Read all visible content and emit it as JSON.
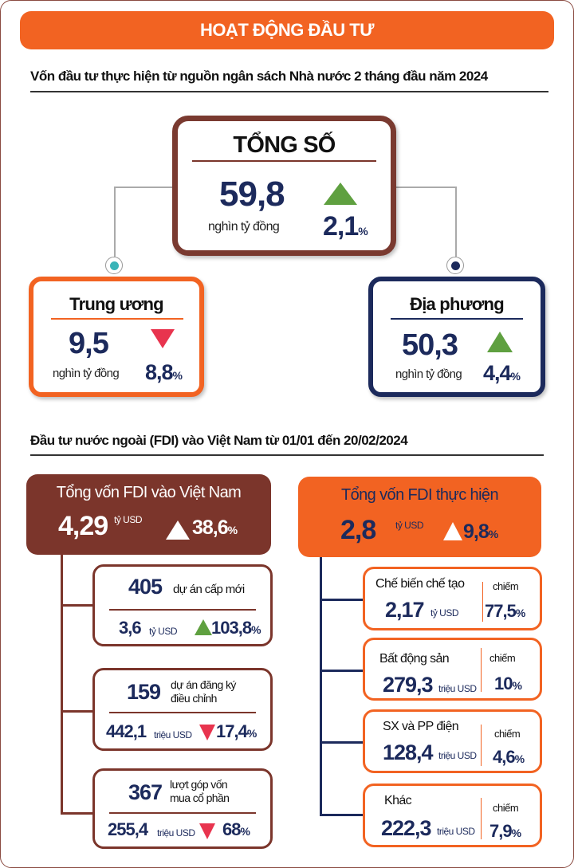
{
  "header": {
    "title": "HOẠT ĐỘNG ĐẦU TƯ"
  },
  "colors": {
    "orange": "#f26322",
    "brown": "#7b352b",
    "navy": "#1c2a5c",
    "up": "#5fa040",
    "down": "#e8344e",
    "teal": "#3ab4b8"
  },
  "budget": {
    "heading": "Vốn đầu tư thực hiện từ nguồn ngân sách Nhà nước 2 tháng đầu năm 2024",
    "total": {
      "title": "TỔNG SỐ",
      "value": "59,8",
      "unit": "nghìn tỷ đồng",
      "change": "2,1",
      "pct": "%",
      "direction": "up"
    },
    "central": {
      "title": "Trung ương",
      "value": "9,5",
      "unit": "nghìn tỷ đồng",
      "change": "8,8",
      "pct": "%",
      "direction": "down"
    },
    "local": {
      "title": "Địa phương",
      "value": "50,3",
      "unit": "nghìn tỷ đồng",
      "change": "4,4",
      "pct": "%",
      "direction": "up"
    }
  },
  "fdi": {
    "heading": "Đầu tư nước ngoài (FDI) vào Việt Nam từ 01/01 đến 20/02/2024",
    "registered": {
      "title": "Tổng vốn FDI vào Việt Nam",
      "value": "4,29",
      "unit": "tỷ USD",
      "change": "38,6",
      "pct": "%",
      "direction": "up",
      "items": [
        {
          "count": "405",
          "label1": "dự án cấp mới",
          "label2": "",
          "value": "3,6",
          "unit": "tỷ USD",
          "change": "103,8",
          "pct": "%",
          "direction": "up"
        },
        {
          "count": "159",
          "label1": "dự án đăng ký",
          "label2": "điều chỉnh",
          "value": "442,1",
          "unit": "triệu USD",
          "change": "17,4",
          "pct": "%",
          "direction": "down"
        },
        {
          "count": "367",
          "label1": "lượt góp vốn",
          "label2": "mua cổ phần",
          "value": "255,4",
          "unit": "triệu USD",
          "change": "68",
          "pct": "%",
          "direction": "down"
        }
      ]
    },
    "disbursed": {
      "title": "Tổng vốn FDI thực hiện",
      "value": "2,8",
      "unit": "tỷ USD",
      "change": "9,8",
      "pct": "%",
      "direction": "up",
      "share_label": "chiếm",
      "items": [
        {
          "sector": "Chế biến chế tạo",
          "value": "2,17",
          "unit": "tỷ USD",
          "share": "77,5",
          "pct": "%"
        },
        {
          "sector": "Bất động sản",
          "value": "279,3",
          "unit": "triệu USD",
          "share": "10",
          "pct": "%"
        },
        {
          "sector": "SX và PP điện",
          "value": "128,4",
          "unit": "triệu USD",
          "share": "4,6",
          "pct": "%"
        },
        {
          "sector": "Khác",
          "value": "222,3",
          "unit": "triệu USD",
          "share": "7,9",
          "pct": "%"
        }
      ]
    }
  }
}
